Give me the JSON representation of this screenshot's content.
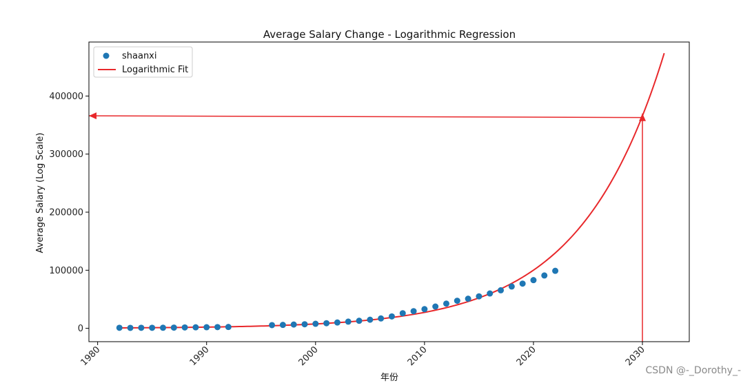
{
  "chart_data": {
    "type": "scatter",
    "title": "Average Salary Change - Logarithmic Regression",
    "xlabel": "年份",
    "ylabel": "Average Salary (Log Scale)",
    "xlim": [
      1979.2,
      2034.3
    ],
    "ylim": [
      -23000,
      493000
    ],
    "x_ticks": [
      1980,
      1990,
      2000,
      2010,
      2020,
      2030
    ],
    "y_ticks": [
      0,
      100000,
      200000,
      300000,
      400000
    ],
    "grid": false,
    "legend_position": "top-left",
    "series": [
      {
        "name": "shaanxi",
        "kind": "scatter",
        "color": "#1f77b4",
        "x": [
          1982,
          1983,
          1984,
          1985,
          1986,
          1987,
          1988,
          1989,
          1990,
          1991,
          1992,
          1996,
          1997,
          1998,
          1999,
          2000,
          2001,
          2002,
          2003,
          2004,
          2005,
          2006,
          2007,
          2008,
          2009,
          2010,
          2011,
          2012,
          2013,
          2014,
          2015,
          2016,
          2017,
          2018,
          2019,
          2020,
          2021,
          2022
        ],
        "y": [
          900,
          800,
          900,
          900,
          1000,
          1200,
          1500,
          1700,
          1900,
          2100,
          2300,
          5500,
          5900,
          6500,
          7000,
          7800,
          8800,
          10000,
          11500,
          13000,
          14800,
          17000,
          20500,
          26000,
          29500,
          33000,
          37500,
          42500,
          47500,
          51000,
          55000,
          60000,
          65500,
          72000,
          77000,
          83000,
          91000,
          99000
        ]
      },
      {
        "name": "Logarithmic Fit",
        "kind": "line",
        "color": "#e8282b",
        "model": "exponential",
        "x_range": [
          1982,
          2032
        ],
        "a": 88000,
        "base_year": 2019,
        "rate": 0.1295
      }
    ],
    "annotations": [
      {
        "kind": "arrow",
        "from": [
          2030,
          -23000
        ],
        "to": [
          2030,
          370000
        ],
        "color": "#e8282b"
      },
      {
        "kind": "arrow",
        "from": [
          2030,
          363000
        ],
        "to": [
          1979.2,
          366000
        ],
        "color": "#e8282b"
      }
    ]
  },
  "watermark": "CSDN @-_Dorothy_-"
}
